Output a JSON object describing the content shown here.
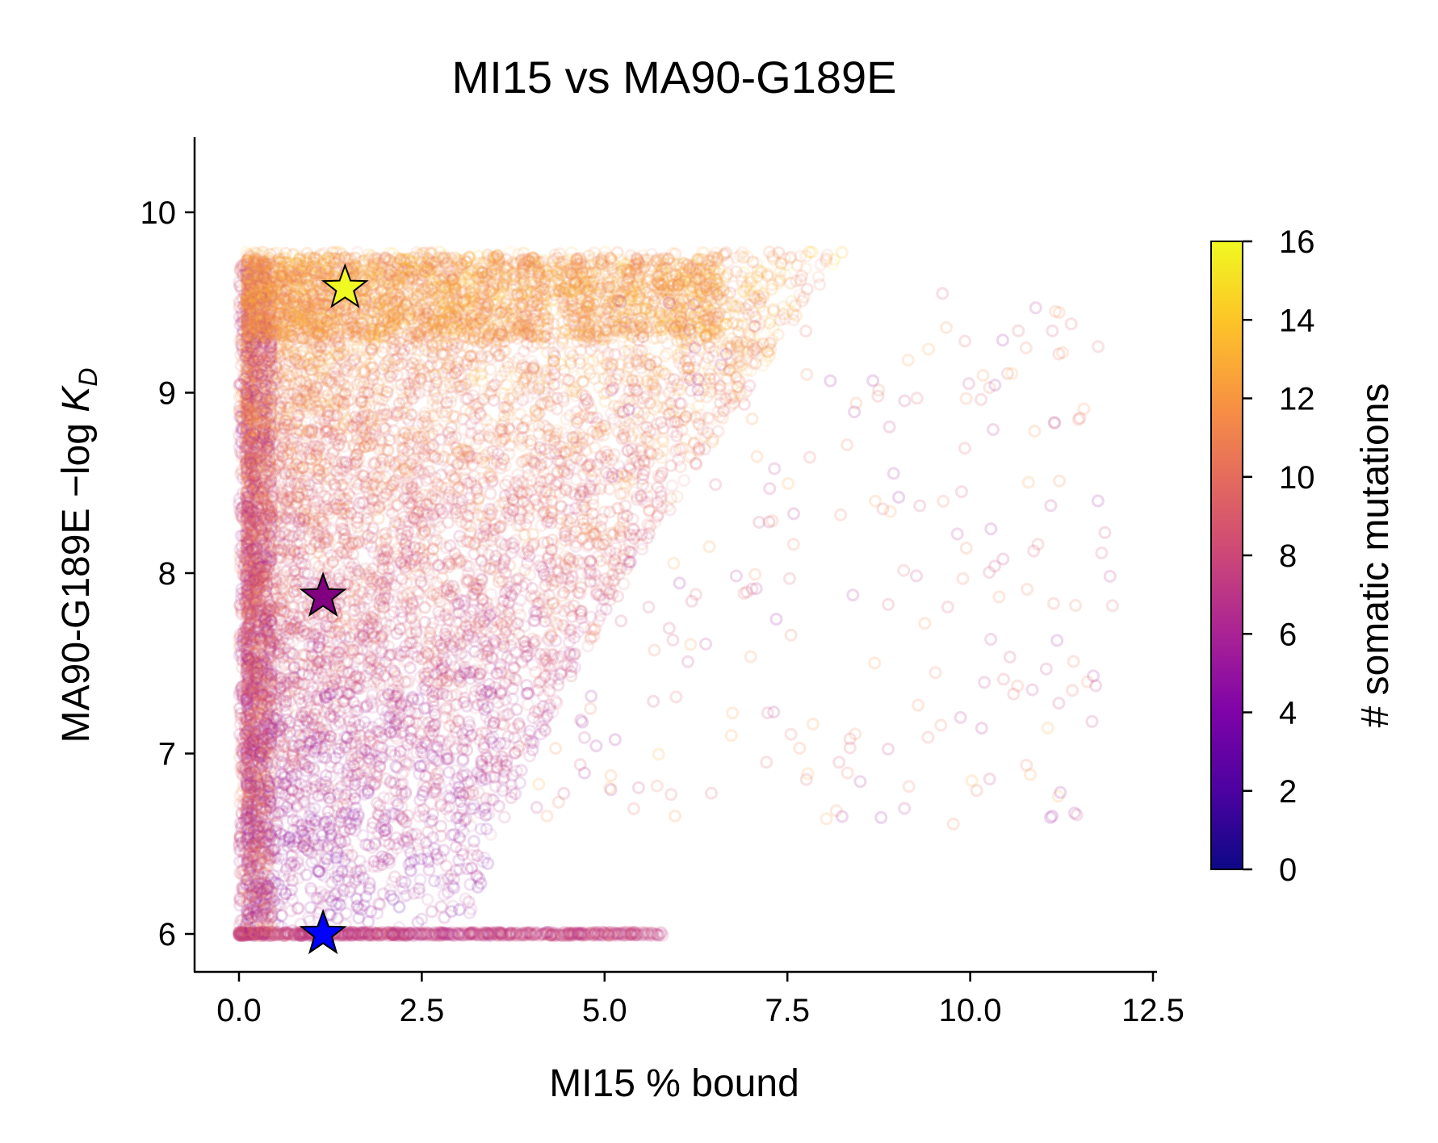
{
  "chart_data": {
    "type": "scatter",
    "title": "MI15 vs MA90-G189E",
    "xlabel": "MI15 % bound",
    "ylabel_main": "MA90-G189E −log ",
    "ylabel_K": "K",
    "ylabel_sub": "D",
    "xlim": [
      -0.6,
      12.6
    ],
    "ylim": [
      5.8,
      10.42
    ],
    "xticks": [
      0.0,
      2.5,
      5.0,
      7.5,
      10.0,
      12.5
    ],
    "xtick_labels": [
      "0.0",
      "2.5",
      "5.0",
      "7.5",
      "10.0",
      "12.5"
    ],
    "yticks": [
      6,
      7,
      8,
      9,
      10
    ],
    "ytick_labels": [
      "6",
      "7",
      "8",
      "9",
      "10"
    ],
    "colorbar": {
      "label": "# somatic mutations",
      "colormap": "plasma",
      "range": [
        0,
        16
      ],
      "ticks": [
        0,
        2,
        4,
        6,
        8,
        10,
        12,
        14,
        16
      ],
      "tick_labels": [
        "0",
        "2",
        "4",
        "6",
        "8",
        "10",
        "12",
        "14",
        "16"
      ]
    },
    "highlighted_points": [
      {
        "x": 1.45,
        "y": 9.58,
        "mutations": 16,
        "color": "#f0f921",
        "marker": "star"
      },
      {
        "x": 1.15,
        "y": 7.87,
        "mutations": 4,
        "color": "#800080",
        "marker": "star"
      },
      {
        "x": 1.15,
        "y": 6.0,
        "mutations": 0,
        "color": "#0000ff",
        "marker": "star"
      }
    ],
    "grid": false,
    "legend": "none"
  }
}
